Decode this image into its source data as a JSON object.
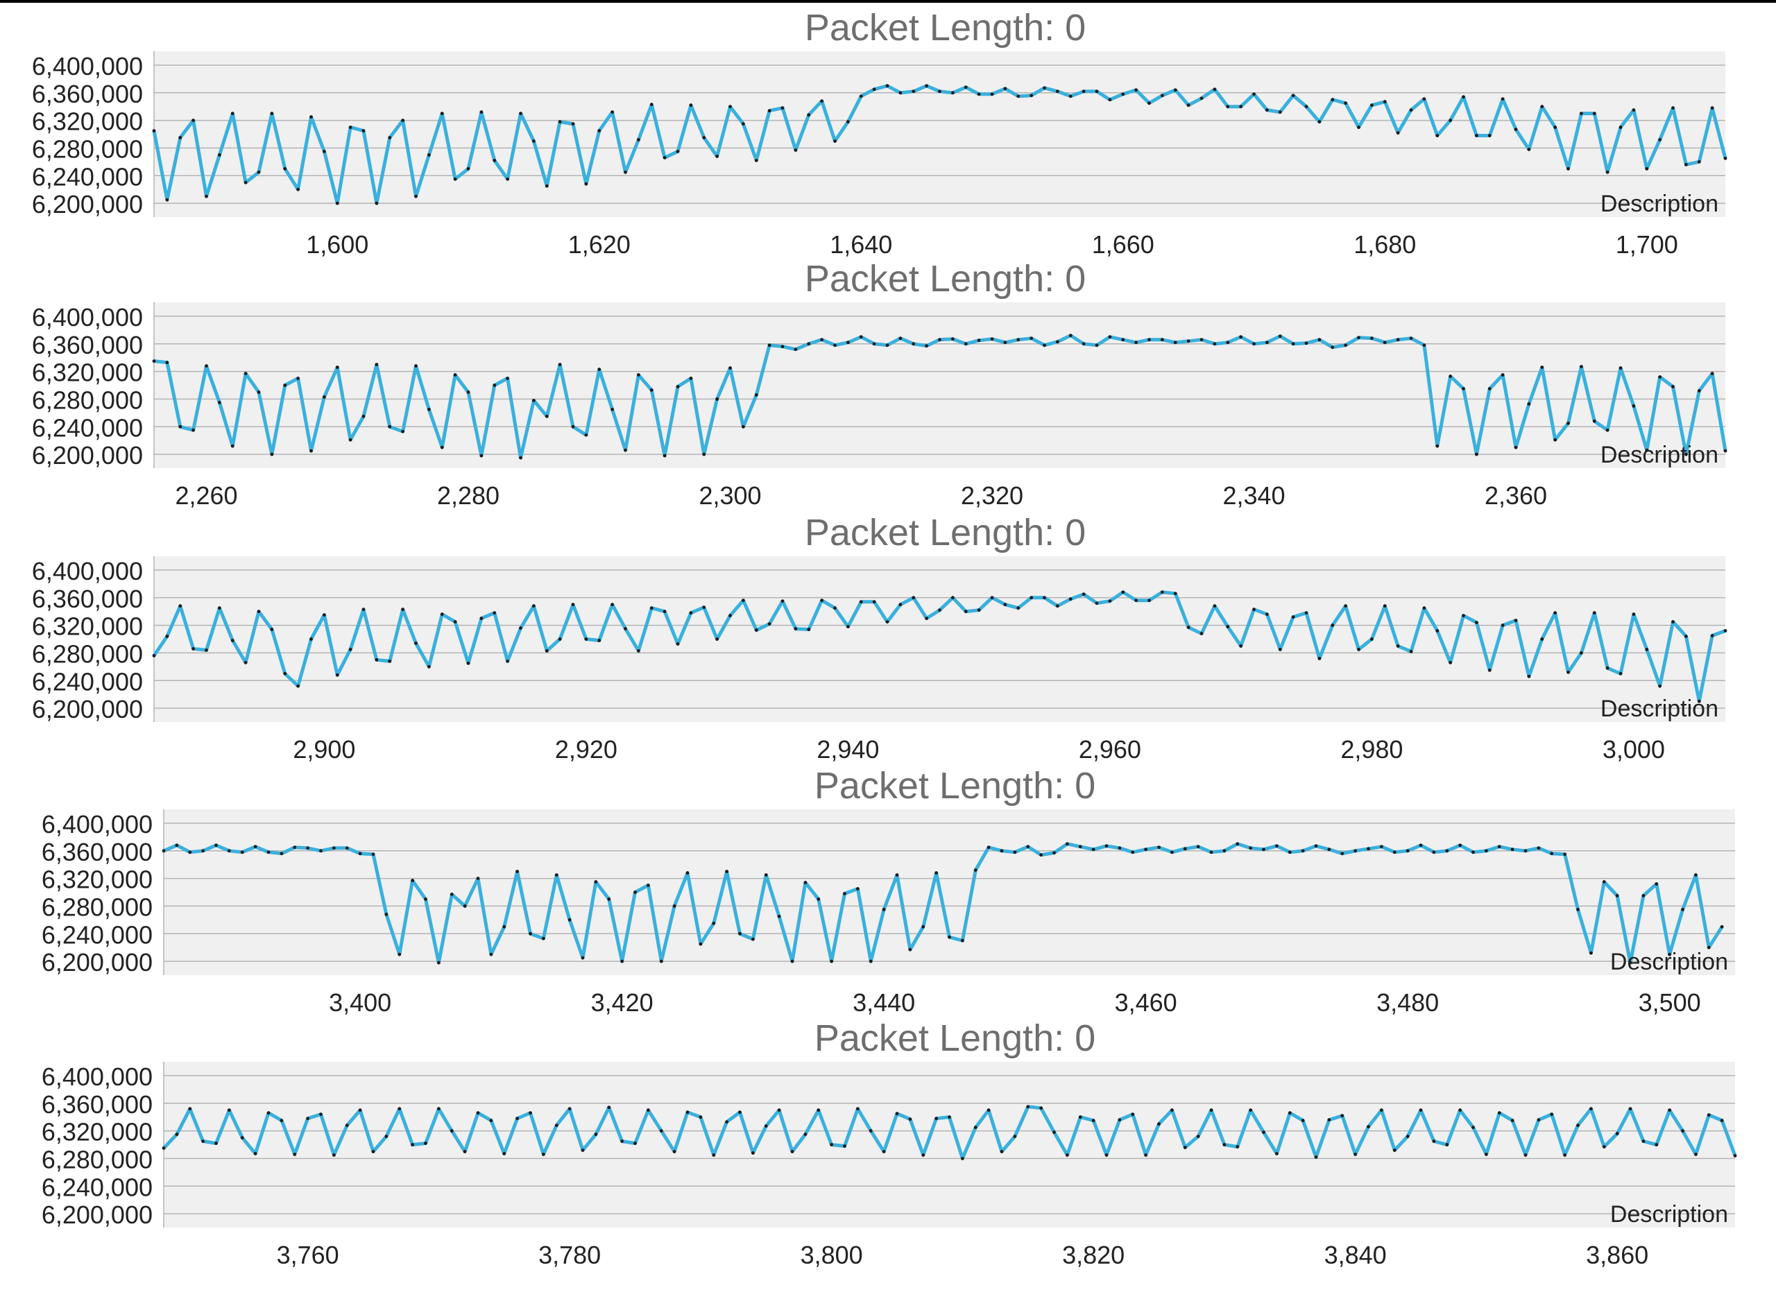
{
  "colors": {
    "line": "#3ab0dd",
    "marker": "#1b1b1b",
    "plot_background": "#f0f0f0",
    "gridline": "#b4b4b4",
    "title": "#6e6e6e",
    "tick_text": "#222222"
  },
  "chart_data": [
    {
      "type": "line",
      "title": "Packet Length: 0",
      "legend": "Description",
      "legend_position": "bottom-right",
      "grid": true,
      "ylim": [
        6180000,
        6420000
      ],
      "yticks": [
        6200000,
        6240000,
        6280000,
        6320000,
        6360000,
        6400000
      ],
      "ytick_labels": [
        "6,200,000",
        "6,240,000",
        "6,280,000",
        "6,320,000",
        "6,360,000",
        "6,400,000"
      ],
      "xlim": [
        1586,
        1706
      ],
      "xticks": [
        1600,
        1620,
        1640,
        1660,
        1680,
        1700
      ],
      "xtick_labels": [
        "1,600",
        "1,620",
        "1,640",
        "1,660",
        "1,680",
        "1,700"
      ],
      "y": [
        6305000,
        6205000,
        6295000,
        6320000,
        6210000,
        6270000,
        6330000,
        6230000,
        6245000,
        6330000,
        6250000,
        6220000,
        6325000,
        6275000,
        6200000,
        6310000,
        6305000,
        6200000,
        6295000,
        6320000,
        6210000,
        6270000,
        6330000,
        6235000,
        6250000,
        6332000,
        6262000,
        6235000,
        6330000,
        6290000,
        6225000,
        6318000,
        6315000,
        6228000,
        6305000,
        6332000,
        6245000,
        6292000,
        6343000,
        6266000,
        6275000,
        6342000,
        6295000,
        6268000,
        6340000,
        6315000,
        6262000,
        6334000,
        6338000,
        6277000,
        6328000,
        6348000,
        6290000,
        6318000,
        6355000,
        6365000,
        6370000,
        6360000,
        6362000,
        6370000,
        6362000,
        6360000,
        6368000,
        6358000,
        6358000,
        6366000,
        6355000,
        6356000,
        6367000,
        6362000,
        6355000,
        6362000,
        6362000,
        6350000,
        6358000,
        6364000,
        6345000,
        6356000,
        6364000,
        6342000,
        6352000,
        6365000,
        6340000,
        6340000,
        6358000,
        6335000,
        6332000,
        6356000,
        6340000,
        6318000,
        6350000,
        6345000,
        6310000,
        6342000,
        6347000,
        6302000,
        6335000,
        6351000,
        6298000,
        6320000,
        6354000,
        6298000,
        6298000,
        6351000,
        6307000,
        6278000,
        6340000,
        6310000,
        6250000,
        6330000,
        6330000,
        6245000,
        6310000,
        6335000,
        6250000,
        6292000,
        6338000,
        6256000,
        6260000,
        6338000,
        6265000
      ]
    },
    {
      "type": "line",
      "title": "Packet Length: 0",
      "legend": "Description",
      "legend_position": "bottom-right",
      "grid": true,
      "ylim": [
        6180000,
        6420000
      ],
      "yticks": [
        6200000,
        6240000,
        6280000,
        6320000,
        6360000,
        6400000
      ],
      "ytick_labels": [
        "6,200,000",
        "6,240,000",
        "6,280,000",
        "6,320,000",
        "6,360,000",
        "6,400,000"
      ],
      "xlim": [
        2256,
        2376
      ],
      "xticks": [
        2260,
        2280,
        2300,
        2320,
        2340,
        2360
      ],
      "xtick_labels": [
        "2,260",
        "2,280",
        "2,300",
        "2,320",
        "2,340",
        "2,360"
      ],
      "y": [
        6335000,
        6333000,
        6240000,
        6235000,
        6328000,
        6275000,
        6212000,
        6317000,
        6290000,
        6200000,
        6300000,
        6310000,
        6205000,
        6283000,
        6326000,
        6221000,
        6255000,
        6330000,
        6240000,
        6233000,
        6328000,
        6265000,
        6210000,
        6315000,
        6290000,
        6198000,
        6300000,
        6310000,
        6195000,
        6278000,
        6255000,
        6330000,
        6240000,
        6228000,
        6323000,
        6265000,
        6206000,
        6315000,
        6293000,
        6198000,
        6298000,
        6310000,
        6200000,
        6280000,
        6325000,
        6240000,
        6286000,
        6358000,
        6356000,
        6352000,
        6360000,
        6366000,
        6358000,
        6362000,
        6370000,
        6360000,
        6358000,
        6368000,
        6360000,
        6357000,
        6366000,
        6367000,
        6360000,
        6365000,
        6367000,
        6362000,
        6366000,
        6368000,
        6358000,
        6363000,
        6372000,
        6360000,
        6358000,
        6370000,
        6366000,
        6362000,
        6366000,
        6366000,
        6362000,
        6364000,
        6366000,
        6360000,
        6362000,
        6370000,
        6360000,
        6362000,
        6371000,
        6360000,
        6361000,
        6366000,
        6355000,
        6358000,
        6369000,
        6368000,
        6362000,
        6366000,
        6368000,
        6358000,
        6212000,
        6313000,
        6295000,
        6200000,
        6295000,
        6315000,
        6210000,
        6273000,
        6326000,
        6221000,
        6245000,
        6327000,
        6248000,
        6235000,
        6325000,
        6270000,
        6206000,
        6312000,
        6298000,
        6200000,
        6292000,
        6317000,
        6205000
      ]
    },
    {
      "type": "line",
      "title": "Packet Length: 0",
      "legend": "Description",
      "legend_position": "bottom-right",
      "grid": true,
      "ylim": [
        6180000,
        6420000
      ],
      "yticks": [
        6200000,
        6240000,
        6280000,
        6320000,
        6360000,
        6400000
      ],
      "ytick_labels": [
        "6,200,000",
        "6,240,000",
        "6,280,000",
        "6,320,000",
        "6,360,000",
        "6,400,000"
      ],
      "xlim": [
        2887,
        3007
      ],
      "xticks": [
        2900,
        2920,
        2940,
        2960,
        2980,
        3000
      ],
      "xtick_labels": [
        "2,900",
        "2,920",
        "2,940",
        "2,960",
        "2,980",
        "3,000"
      ],
      "y": [
        6276000,
        6304000,
        6348000,
        6286000,
        6284000,
        6345000,
        6298000,
        6266000,
        6340000,
        6314000,
        6250000,
        6232000,
        6300000,
        6335000,
        6248000,
        6285000,
        6343000,
        6270000,
        6268000,
        6343000,
        6294000,
        6260000,
        6336000,
        6325000,
        6265000,
        6330000,
        6338000,
        6268000,
        6316000,
        6348000,
        6283000,
        6300000,
        6350000,
        6300000,
        6298000,
        6350000,
        6315000,
        6283000,
        6345000,
        6340000,
        6293000,
        6338000,
        6346000,
        6300000,
        6334000,
        6356000,
        6313000,
        6322000,
        6355000,
        6315000,
        6314000,
        6356000,
        6345000,
        6318000,
        6354000,
        6354000,
        6325000,
        6350000,
        6360000,
        6330000,
        6342000,
        6360000,
        6340000,
        6342000,
        6360000,
        6350000,
        6345000,
        6360000,
        6360000,
        6348000,
        6358000,
        6365000,
        6352000,
        6355000,
        6368000,
        6356000,
        6356000,
        6368000,
        6366000,
        6317000,
        6308000,
        6348000,
        6318000,
        6290000,
        6343000,
        6336000,
        6285000,
        6332000,
        6338000,
        6272000,
        6320000,
        6348000,
        6285000,
        6300000,
        6348000,
        6290000,
        6282000,
        6345000,
        6312000,
        6266000,
        6334000,
        6324000,
        6255000,
        6320000,
        6327000,
        6246000,
        6300000,
        6338000,
        6252000,
        6280000,
        6338000,
        6258000,
        6250000,
        6336000,
        6285000,
        6232000,
        6325000,
        6304000,
        6210000,
        6305000,
        6312000
      ]
    },
    {
      "type": "line",
      "title": "Packet Length: 0",
      "legend": "Description",
      "legend_position": "bottom-right",
      "grid": true,
      "ylim": [
        6180000,
        6420000
      ],
      "yticks": [
        6200000,
        6240000,
        6280000,
        6320000,
        6360000,
        6400000
      ],
      "ytick_labels": [
        "6,200,000",
        "6,240,000",
        "6,280,000",
        "6,320,000",
        "6,360,000",
        "6,400,000"
      ],
      "xlim": [
        3385,
        3505
      ],
      "xticks": [
        3400,
        3420,
        3440,
        3460,
        3480,
        3500
      ],
      "xtick_labels": [
        "3,400",
        "3,420",
        "3,440",
        "3,460",
        "3,480",
        "3,500"
      ],
      "y": [
        6360000,
        6368000,
        6358000,
        6360000,
        6368000,
        6360000,
        6358000,
        6366000,
        6358000,
        6356000,
        6365000,
        6364000,
        6360000,
        6364000,
        6364000,
        6356000,
        6355000,
        6268000,
        6210000,
        6317000,
        6290000,
        6198000,
        6297000,
        6280000,
        6320000,
        6210000,
        6250000,
        6330000,
        6240000,
        6233000,
        6325000,
        6260000,
        6205000,
        6315000,
        6290000,
        6200000,
        6300000,
        6310000,
        6200000,
        6280000,
        6328000,
        6225000,
        6255000,
        6330000,
        6240000,
        6232000,
        6325000,
        6265000,
        6200000,
        6314000,
        6290000,
        6200000,
        6298000,
        6305000,
        6200000,
        6275000,
        6325000,
        6217000,
        6250000,
        6328000,
        6235000,
        6230000,
        6332000,
        6365000,
        6360000,
        6358000,
        6366000,
        6354000,
        6357000,
        6370000,
        6366000,
        6362000,
        6367000,
        6364000,
        6358000,
        6362000,
        6365000,
        6358000,
        6363000,
        6366000,
        6358000,
        6360000,
        6370000,
        6364000,
        6362000,
        6367000,
        6358000,
        6360000,
        6367000,
        6362000,
        6356000,
        6360000,
        6363000,
        6366000,
        6358000,
        6360000,
        6368000,
        6358000,
        6360000,
        6368000,
        6358000,
        6360000,
        6366000,
        6362000,
        6360000,
        6364000,
        6356000,
        6355000,
        6275000,
        6212000,
        6315000,
        6295000,
        6198000,
        6295000,
        6312000,
        6210000,
        6275000,
        6325000,
        6220000,
        6250000
      ]
    },
    {
      "type": "line",
      "title": "Packet Length: 0",
      "legend": "Description",
      "legend_position": "bottom-right",
      "grid": true,
      "ylim": [
        6180000,
        6420000
      ],
      "yticks": [
        6200000,
        6240000,
        6280000,
        6320000,
        6360000,
        6400000
      ],
      "ytick_labels": [
        "6,200,000",
        "6,240,000",
        "6,280,000",
        "6,320,000",
        "6,360,000",
        "6,400,000"
      ],
      "xlim": [
        3749,
        3869
      ],
      "xticks": [
        3760,
        3780,
        3800,
        3820,
        3840,
        3860
      ],
      "xtick_labels": [
        "3,760",
        "3,780",
        "3,800",
        "3,820",
        "3,840",
        "3,860"
      ],
      "y": [
        6295000,
        6315000,
        6352000,
        6305000,
        6302000,
        6350000,
        6310000,
        6287000,
        6346000,
        6335000,
        6286000,
        6338000,
        6344000,
        6285000,
        6328000,
        6350000,
        6290000,
        6312000,
        6352000,
        6300000,
        6302000,
        6352000,
        6320000,
        6290000,
        6346000,
        6335000,
        6287000,
        6338000,
        6346000,
        6286000,
        6328000,
        6352000,
        6292000,
        6315000,
        6354000,
        6305000,
        6302000,
        6350000,
        6320000,
        6290000,
        6347000,
        6340000,
        6285000,
        6333000,
        6347000,
        6288000,
        6327000,
        6350000,
        6290000,
        6315000,
        6350000,
        6300000,
        6298000,
        6352000,
        6320000,
        6290000,
        6345000,
        6337000,
        6285000,
        6338000,
        6340000,
        6280000,
        6325000,
        6350000,
        6290000,
        6312000,
        6355000,
        6353000,
        6318000,
        6285000,
        6340000,
        6335000,
        6285000,
        6336000,
        6344000,
        6285000,
        6330000,
        6350000,
        6296000,
        6312000,
        6350000,
        6300000,
        6297000,
        6350000,
        6318000,
        6287000,
        6346000,
        6335000,
        6282000,
        6336000,
        6342000,
        6286000,
        6326000,
        6350000,
        6292000,
        6312000,
        6350000,
        6305000,
        6300000,
        6350000,
        6325000,
        6286000,
        6346000,
        6335000,
        6285000,
        6336000,
        6344000,
        6285000,
        6328000,
        6352000,
        6297000,
        6316000,
        6352000,
        6305000,
        6300000,
        6350000,
        6320000,
        6286000,
        6343000,
        6335000,
        6284000
      ]
    }
  ]
}
